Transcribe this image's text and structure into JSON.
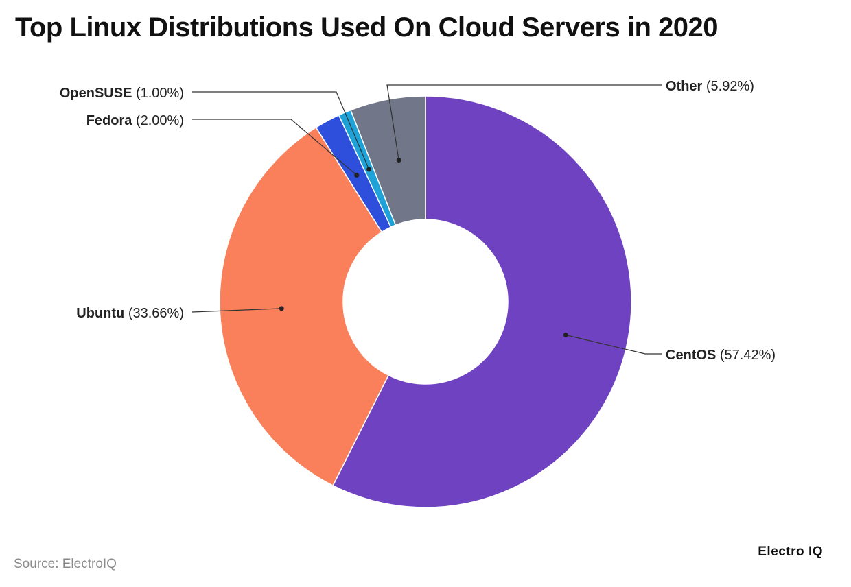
{
  "title": "Top Linux Distributions Used On Cloud Servers in 2020",
  "source": "Source: ElectroIQ",
  "brand": "Electro IQ",
  "chart_data": {
    "type": "pie",
    "donut": true,
    "title": "Top Linux Distributions Used On Cloud Servers in 2020",
    "slices": [
      {
        "name": "CentOS",
        "value": 57.42,
        "label": "(57.42%)",
        "color": "#6f42c1"
      },
      {
        "name": "Ubuntu",
        "value": 33.66,
        "label": "(33.66%)",
        "color": "#f9805a"
      },
      {
        "name": "Fedora",
        "value": 2.0,
        "label": "(2.00%)",
        "color": "#2e4fdc"
      },
      {
        "name": "OpenSUSE",
        "value": 1.0,
        "label": "(1.00%)",
        "color": "#1fa2d8"
      },
      {
        "name": "Other",
        "value": 5.92,
        "label": "(5.92%)",
        "color": "#717788"
      }
    ],
    "legend": "none"
  }
}
